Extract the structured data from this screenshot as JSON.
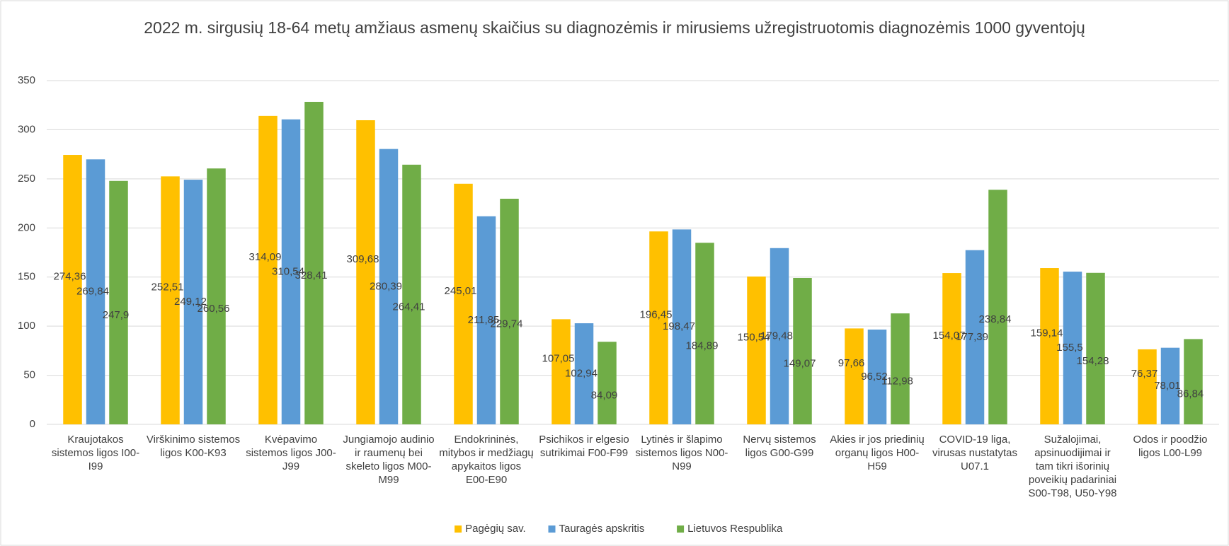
{
  "chart_data": {
    "type": "bar",
    "title": "2022 m. sirgusių 18-64 metų amžiaus asmenų skaičius su diagnozėmis ir mirusiems užregistruotomis diagnozėmis 1000 gyventojų",
    "categories": [
      "Kraujotakos sistemos ligos I00-I99",
      "Virškinimo sistemos ligos K00-K93",
      "Kvėpavimo sistemos ligos J00-J99",
      "Jungiamojo audinio ir raumenų bei skeleto ligos M00-M99",
      "Endokrininės, mitybos ir medžiagų apykaitos ligos E00-E90",
      "Psichikos ir elgesio sutrikimai F00-F99",
      "Lytinės ir šlapimo sistemos ligos N00-N99",
      "Nervų sistemos ligos G00-G99",
      "Akies ir jos priedinių organų ligos H00-H59",
      "COVID-19 liga, virusas nustatytas U07.1",
      "Sužalojimai, apsinuodijimai ir tam tikri išorinių poveikių padariniai S00-T98, U50-Y98",
      "Odos ir poodžio ligos L00-L99"
    ],
    "series": [
      {
        "name": "Pagėgių sav.",
        "color": "#FFC000",
        "values": [
          274.36,
          252.51,
          314.09,
          309.68,
          245.01,
          107.05,
          196.45,
          150.54,
          97.66,
          154.07,
          159.14,
          76.37
        ],
        "value_labels": [
          "274,36",
          "252,51",
          "314,09",
          "309,68",
          "245,01",
          "107,05",
          "196,45",
          "150,54",
          "97,66",
          "154,07",
          "159,14",
          "76,37"
        ]
      },
      {
        "name": "Tauragės apskritis",
        "color": "#5B9BD5",
        "values": [
          269.84,
          249.12,
          310.54,
          280.39,
          211.85,
          102.94,
          198.47,
          179.48,
          96.52,
          177.39,
          155.5,
          78.01
        ],
        "value_labels": [
          "269,84",
          "249,12",
          "310,54",
          "280,39",
          "211,85",
          "102,94",
          "198,47",
          "179,48",
          "96,52",
          "177,39",
          "155,5",
          "78,01"
        ]
      },
      {
        "name": "Lietuvos Respublika",
        "color": "#70AD47",
        "values": [
          247.9,
          260.56,
          328.41,
          264.41,
          229.74,
          84.09,
          184.89,
          149.07,
          112.98,
          238.84,
          154.28,
          86.84
        ],
        "value_labels": [
          "247,9",
          "260,56",
          "328,41",
          "264,41",
          "229,74",
          "84,09",
          "184,89",
          "149,07",
          "112,98",
          "238,84",
          "154,28",
          "86,84"
        ]
      }
    ],
    "ylim": [
      0,
      350
    ],
    "yticks": [
      0,
      50,
      100,
      150,
      200,
      250,
      300,
      350
    ],
    "grid": true,
    "legend": "bottom"
  }
}
